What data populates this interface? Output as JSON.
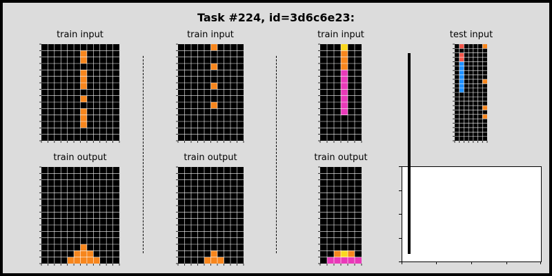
{
  "title": "Task #224, id=3d6c6e23:",
  "colors": {
    "background": "#dcdcdc",
    "cell_empty": "#000000",
    "gridline": "#ffffff",
    "orange": "#f7861d",
    "yellow": "#f9d81f",
    "magenta": "#e93ab9",
    "red": "#f2564a",
    "blue": "#1f90ff"
  },
  "panels": [
    {
      "title": "train input",
      "rows": 15,
      "cols": 12,
      "fill": "orange",
      "cells": [
        [
          1,
          6
        ],
        [
          2,
          6
        ],
        [
          4,
          6
        ],
        [
          5,
          6
        ],
        [
          6,
          6
        ],
        [
          8,
          6
        ],
        [
          10,
          6
        ],
        [
          11,
          6
        ],
        [
          12,
          6
        ]
      ]
    },
    {
      "title": "train output",
      "rows": 15,
      "cols": 12,
      "fill": "orange",
      "cells": [
        [
          12,
          6
        ],
        [
          13,
          5
        ],
        [
          13,
          6
        ],
        [
          13,
          7
        ],
        [
          14,
          4
        ],
        [
          14,
          5
        ],
        [
          14,
          6
        ],
        [
          14,
          7
        ],
        [
          14,
          8
        ]
      ]
    },
    {
      "title": "train input",
      "rows": 15,
      "cols": 10,
      "fill": "orange",
      "cells": [
        [
          0,
          5
        ],
        [
          3,
          5
        ],
        [
          6,
          5
        ],
        [
          9,
          5
        ]
      ]
    },
    {
      "title": "train output",
      "rows": 15,
      "cols": 10,
      "fill": "orange",
      "cells": [
        [
          13,
          5
        ],
        [
          14,
          4
        ],
        [
          14,
          5
        ],
        [
          14,
          6
        ]
      ]
    },
    {
      "title": "train input",
      "rows": 15,
      "cols": 6,
      "colored_cells": [
        {
          "r": 0,
          "c": 3,
          "color": "yellow"
        },
        {
          "r": 1,
          "c": 3,
          "color": "orange"
        },
        {
          "r": 2,
          "c": 3,
          "color": "orange"
        },
        {
          "r": 3,
          "c": 3,
          "color": "orange"
        },
        {
          "r": 4,
          "c": 3,
          "color": "magenta"
        },
        {
          "r": 5,
          "c": 3,
          "color": "magenta"
        },
        {
          "r": 6,
          "c": 3,
          "color": "magenta"
        },
        {
          "r": 7,
          "c": 3,
          "color": "magenta"
        },
        {
          "r": 8,
          "c": 3,
          "color": "magenta"
        },
        {
          "r": 9,
          "c": 3,
          "color": "magenta"
        },
        {
          "r": 10,
          "c": 3,
          "color": "magenta"
        }
      ]
    },
    {
      "title": "train output",
      "rows": 15,
      "cols": 6,
      "colored_cells": [
        {
          "r": 13,
          "c": 2,
          "color": "orange"
        },
        {
          "r": 13,
          "c": 3,
          "color": "yellow"
        },
        {
          "r": 13,
          "c": 4,
          "color": "orange"
        },
        {
          "r": 14,
          "c": 1,
          "color": "magenta"
        },
        {
          "r": 14,
          "c": 2,
          "color": "magenta"
        },
        {
          "r": 14,
          "c": 3,
          "color": "magenta"
        },
        {
          "r": 14,
          "c": 4,
          "color": "magenta"
        },
        {
          "r": 14,
          "c": 5,
          "color": "magenta"
        }
      ]
    },
    {
      "title": "test input",
      "rows": 22,
      "cols": 7,
      "colored_cells": [
        {
          "r": 0,
          "c": 1,
          "color": "red"
        },
        {
          "r": 0,
          "c": 6,
          "color": "orange"
        },
        {
          "r": 2,
          "c": 1,
          "color": "red"
        },
        {
          "r": 3,
          "c": 1,
          "color": "red"
        },
        {
          "r": 4,
          "c": 1,
          "color": "blue"
        },
        {
          "r": 5,
          "c": 1,
          "color": "blue"
        },
        {
          "r": 6,
          "c": 1,
          "color": "blue"
        },
        {
          "r": 7,
          "c": 1,
          "color": "blue"
        },
        {
          "r": 8,
          "c": 1,
          "color": "blue"
        },
        {
          "r": 9,
          "c": 1,
          "color": "blue"
        },
        {
          "r": 10,
          "c": 1,
          "color": "blue"
        },
        {
          "r": 8,
          "c": 6,
          "color": "orange"
        },
        {
          "r": 14,
          "c": 6,
          "color": "orange"
        },
        {
          "r": 16,
          "c": 6,
          "color": "orange"
        }
      ]
    }
  ]
}
